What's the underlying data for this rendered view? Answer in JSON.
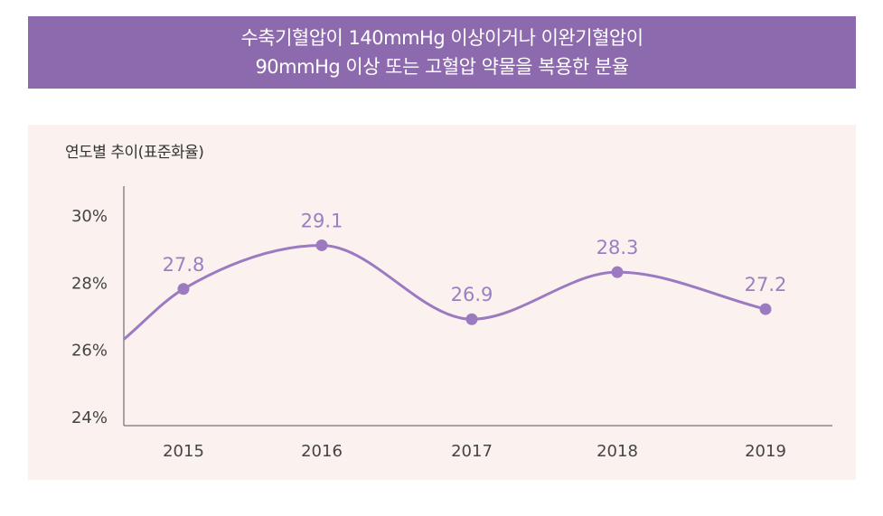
{
  "header": {
    "title_line1": "수축기혈압이 140mmHg 이상이거나 이완기혈압이",
    "title_line2": "90mmHg 이상 또는 고혈압 약물을 복용한 분율"
  },
  "panel": {
    "subtitle": "연도별 추이(표준화율)"
  },
  "colors": {
    "banner": "#8d6aae",
    "line": "#9b7ac2",
    "panel_bg": "#fbf2ef"
  },
  "chart_data": {
    "type": "line",
    "title": "수축기혈압이 140mmHg 이상이거나 이완기혈압이 90mmHg 이상 또는 고혈압 약물을 복용한 분율",
    "subtitle": "연도별 추이(표준화율)",
    "categories": [
      "2015",
      "2016",
      "2017",
      "2018",
      "2019"
    ],
    "values": [
      27.8,
      29.1,
      26.9,
      28.3,
      27.2
    ],
    "data_labels": [
      "27.8",
      "29.1",
      "26.9",
      "28.3",
      "27.2"
    ],
    "y_ticks": [
      {
        "value": 30,
        "label": "30%"
      },
      {
        "value": 28,
        "label": "28%"
      },
      {
        "value": 26,
        "label": "26%"
      },
      {
        "value": 24,
        "label": "24%"
      }
    ],
    "ylim": [
      24,
      30
    ],
    "grid": false,
    "smooth": true
  }
}
